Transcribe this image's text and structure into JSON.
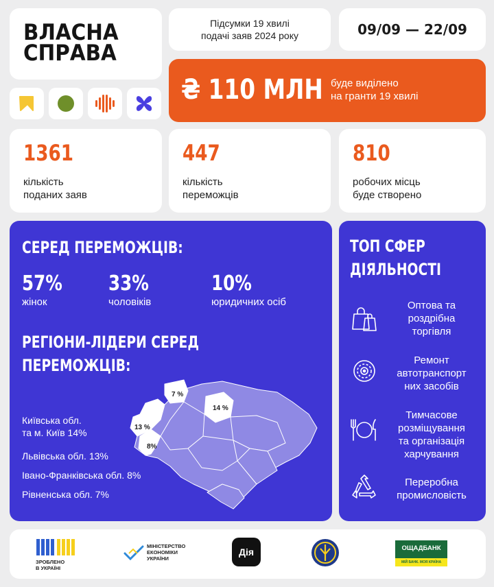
{
  "logo": {
    "line1": "ВЛАСНА",
    "line2": "СПРАВА"
  },
  "icons": [
    "yellow-arrow-icon",
    "green-circle-icon",
    "orange-sound-wave-icon",
    "blue-petal-cross-icon"
  ],
  "colors": {
    "accent_orange": "#ea5a1e",
    "accent_blue": "#3f36d4",
    "background": "#ededee",
    "map_fill": "#8f89e4",
    "map_highlight": "#ffffff"
  },
  "header": {
    "subtitle_line1": "Підсумки 19 хвилі",
    "subtitle_line2": "подачі заяв 2024 року",
    "dates": "09/09 — 22/09"
  },
  "banner": {
    "amount": "₴ 110 МЛН",
    "text_line1": "буде виділено",
    "text_line2": "на гранти 19 хвилі"
  },
  "stats": [
    {
      "value": "1361",
      "label_line1": "кількість",
      "label_line2": "поданих заяв"
    },
    {
      "value": "447",
      "label_line1": "кількість",
      "label_line2": "переможців"
    },
    {
      "value": "810",
      "label_line1": "робочих місць",
      "label_line2": "буде створено"
    }
  ],
  "winners": {
    "title": "СЕРЕД ПЕРЕМОЖЦІВ:",
    "shares": [
      {
        "value": "57%",
        "label": "жінок"
      },
      {
        "value": "33%",
        "label": "чоловіків"
      },
      {
        "value": "10%",
        "label": "юридичних осіб"
      }
    ],
    "regions_title_line1": "РЕГІОНИ-ЛІДЕРИ СЕРЕД",
    "regions_title_line2": "ПЕРЕМОЖЦІВ:",
    "regions": [
      {
        "line1": "Київська обл.",
        "line2": "та м. Київ 14%"
      },
      {
        "line1": "Львівська обл. 13%",
        "line2": ""
      },
      {
        "line1": "Івано-Франківська обл. 8%",
        "line2": ""
      },
      {
        "line1": "Рівненська обл. 7%",
        "line2": ""
      }
    ],
    "map_labels": {
      "kyiv": "14 %",
      "lviv": "13 %",
      "ivano_frankivsk": "8%",
      "rivne": "7 %"
    }
  },
  "spheres": {
    "title_line1": "ТОП СФЕР",
    "title_line2": "ДІЯЛЬНОСТІ",
    "items": [
      {
        "icon": "shopping-bags-icon",
        "lines": [
          "Оптова та",
          "роздрібна",
          "торгівля"
        ]
      },
      {
        "icon": "gear-wheel-icon",
        "lines": [
          "Ремонт",
          "автотранспорт",
          "них засобів"
        ]
      },
      {
        "icon": "plate-cutlery-icon",
        "lines": [
          "Тимчасове",
          "розміщування",
          "та організація",
          "харчування"
        ]
      },
      {
        "icon": "recycle-icon",
        "lines": [
          "Переробна",
          "промисловість"
        ]
      }
    ]
  },
  "footer": {
    "made_in_ukraine_line1": "ЗРОБЛЕНО",
    "made_in_ukraine_line2": "В УКРАЇНІ",
    "ministry_line1": "МІНІСТЕРСТВО",
    "ministry_line2": "ЕКОНОМІКИ",
    "ministry_line3": "УКРАЇНИ",
    "diia": "Дія",
    "oschadbank": "ОЩАДБАНК",
    "oschadbank_slogan": "МІЙ БАНК. МОЯ КРАЇНА"
  }
}
